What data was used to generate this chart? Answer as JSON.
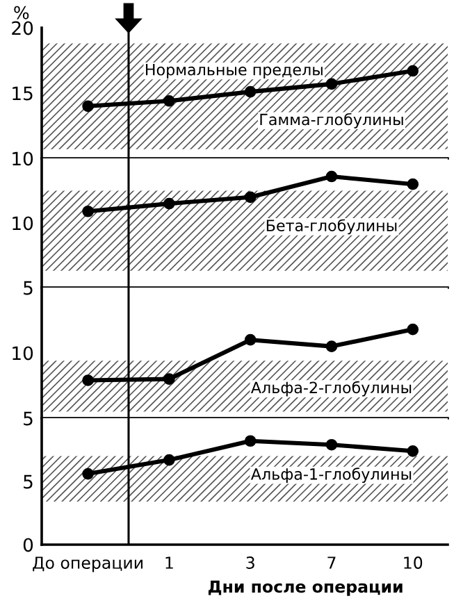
{
  "chart_data": [
    {
      "type": "line",
      "ylabel": "%",
      "categories": [
        null,
        null,
        null,
        null,
        null
      ],
      "ylim": [
        10,
        20
      ],
      "yticks": [
        10,
        15,
        20
      ],
      "tick_labels": "y",
      "grid": false,
      "legend": false,
      "marker": "circle",
      "line_style": "solid",
      "series": [
        {
          "name": "Гамма-глобулины",
          "color": "#000000",
          "values": [
            14.0,
            14.4,
            15.1,
            15.7,
            16.7
          ]
        }
      ],
      "bands": [
        {
          "axis": "y",
          "from": 10.7,
          "to": 18.8,
          "label": "Нормальные пределы",
          "color": "#555555"
        }
      ]
    },
    {
      "type": "line",
      "categories": [
        null,
        null,
        null,
        null,
        null
      ],
      "ylim": [
        5,
        15
      ],
      "yticks": [
        5,
        10
      ],
      "tick_labels": "y",
      "grid": false,
      "legend": false,
      "marker": "circle",
      "line_style": "solid",
      "series": [
        {
          "name": "Бета-глобулины",
          "color": "#000000",
          "values": [
            10.9,
            11.5,
            12.0,
            13.6,
            13.0
          ]
        }
      ],
      "bands": [
        {
          "axis": "y",
          "from": 6.3,
          "to": 12.5,
          "color": "#555555"
        }
      ]
    },
    {
      "type": "line",
      "categories": [
        null,
        null,
        null,
        null,
        null
      ],
      "ylim": [
        5,
        15
      ],
      "yticks": [
        5,
        10
      ],
      "tick_labels": "y",
      "grid": false,
      "legend": false,
      "marker": "circle",
      "line_style": "solid",
      "series": [
        {
          "name": "Альфа-2-глобулины",
          "color": "#000000",
          "values": [
            7.9,
            8.0,
            11.0,
            10.5,
            11.8
          ]
        }
      ],
      "bands": [
        {
          "axis": "y",
          "from": 5.5,
          "to": 9.4,
          "color": "#555555"
        }
      ]
    },
    {
      "type": "line",
      "xlabel": "Дни после операции",
      "categories": [
        "До операции",
        "1",
        "3",
        "7",
        "10"
      ],
      "ylim": [
        0,
        10
      ],
      "yticks": [
        0,
        5
      ],
      "grid": false,
      "legend": false,
      "marker": "circle",
      "line_style": "solid",
      "series": [
        {
          "name": "Альфа-1-глобулины",
          "color": "#000000",
          "values": [
            5.6,
            6.7,
            8.2,
            7.9,
            7.4
          ]
        }
      ],
      "bands": [
        {
          "axis": "y",
          "from": 3.4,
          "to": 7.0,
          "color": "#555555"
        }
      ]
    }
  ]
}
